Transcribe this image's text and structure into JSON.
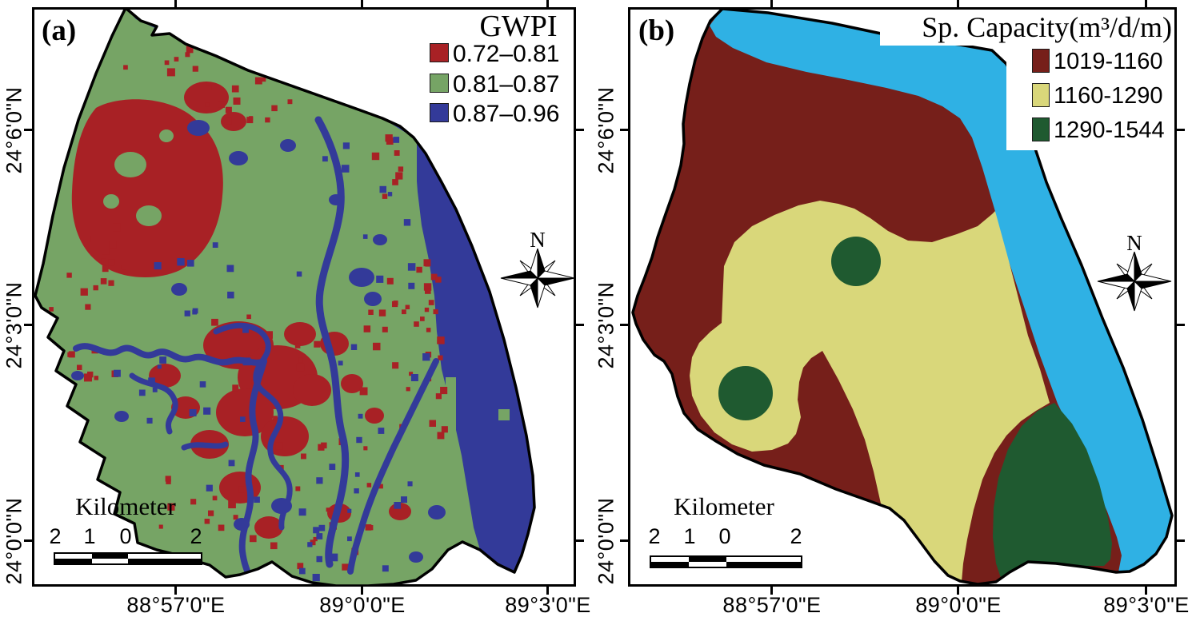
{
  "colors": {
    "gwpi_low": "#a82125",
    "gwpi_mid": "#76a465",
    "gwpi_high": "#333a99",
    "cap_low": "#761f1a",
    "cap_mid": "#d9d77a",
    "cap_high": "#1f5a30",
    "cap_band": "#2fb1e4",
    "outline": "#000000"
  },
  "panel_a": {
    "label": "(a)",
    "legend": {
      "title": "GWPI",
      "items": [
        {
          "label": "0.72–0.81",
          "color": "#a82125"
        },
        {
          "label": "0.81–0.87",
          "color": "#76a465"
        },
        {
          "label": "0.87–0.96",
          "color": "#333a99"
        }
      ]
    },
    "north_label": "N",
    "scalebar": {
      "title": "Kilometer",
      "tick_labels": [
        "2",
        "1",
        "0",
        "2"
      ]
    },
    "x_ticks": [
      "88°57'0\"E",
      "89°0'0\"E",
      "89°3'0\"E"
    ],
    "y_ticks": [
      "24°6'0\"N",
      "24°3'0\"N",
      "24°0'0\"N"
    ]
  },
  "panel_b": {
    "label": "(b)",
    "legend": {
      "title": "Sp. Capacity(m³/d/m)",
      "items": [
        {
          "label": "1019-1160",
          "color": "#761f1a"
        },
        {
          "label": "1160-1290",
          "color": "#d9d77a"
        },
        {
          "label": "1290-1544",
          "color": "#1f5a30"
        }
      ]
    },
    "north_label": "N",
    "scalebar": {
      "title": "Kilometer",
      "tick_labels": [
        "2",
        "1",
        "0",
        "2"
      ]
    },
    "x_ticks": [
      "88°57'0\"E",
      "89°0'0\"E",
      "89°3'0\"E"
    ],
    "y_ticks": [
      "24°6'0\"N",
      "24°3'0\"N",
      "24°0'0\"N"
    ]
  }
}
